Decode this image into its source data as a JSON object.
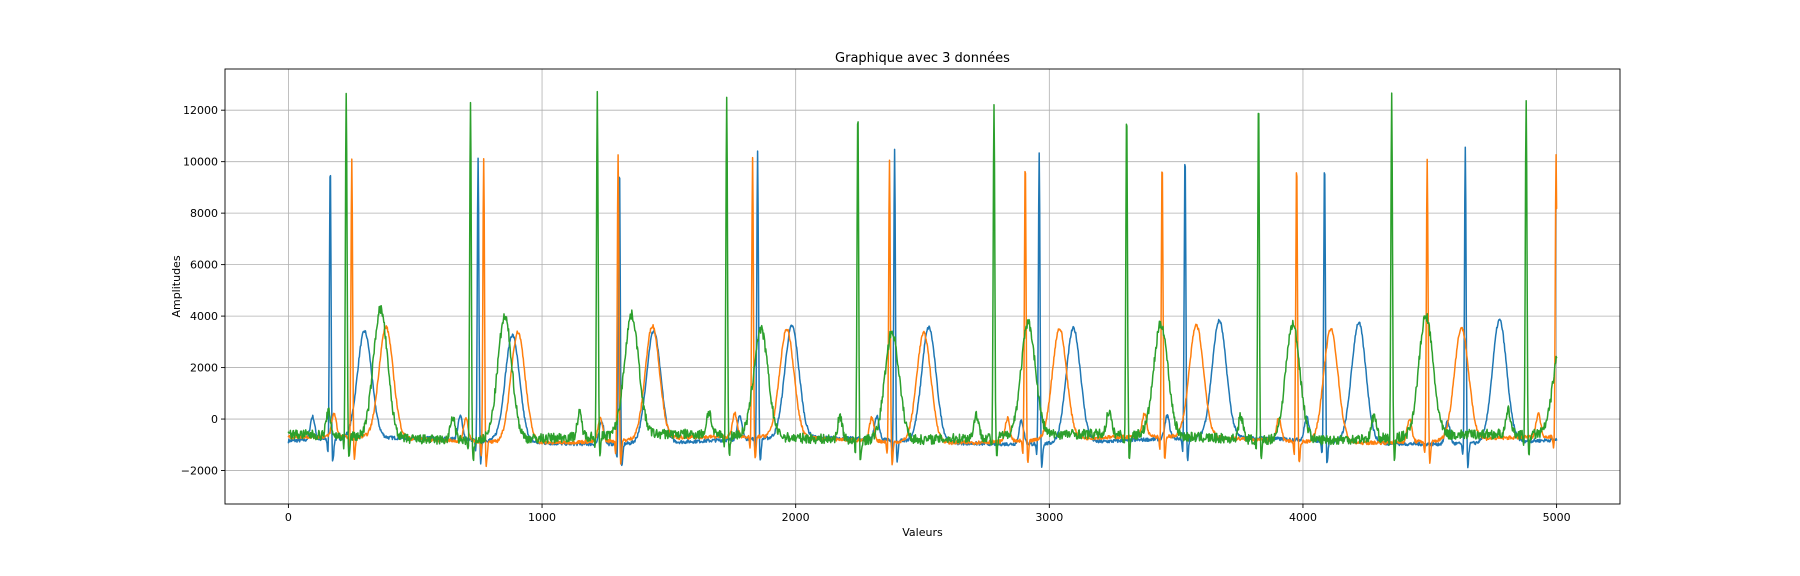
{
  "chart_data": {
    "type": "line",
    "title": "Graphique avec 3 données",
    "xlabel": "Valeurs",
    "ylabel": "Amplitudes",
    "xlim": [
      -250,
      5250
    ],
    "ylim": [
      -3300,
      13600
    ],
    "xticks": [
      0,
      1000,
      2000,
      3000,
      4000,
      5000
    ],
    "xtick_labels": [
      "0",
      "1000",
      "2000",
      "3000",
      "4000",
      "5000"
    ],
    "yticks": [
      -2000,
      0,
      2000,
      4000,
      6000,
      8000,
      10000,
      12000
    ],
    "ytick_labels": [
      "−2000",
      "0",
      "2000",
      "4000",
      "6000",
      "8000",
      "10000",
      "12000"
    ],
    "grid": true,
    "series": [
      {
        "color": "#1f77b4",
        "baseline": -850,
        "beats": [
          {
            "r": 165,
            "peak": 10000,
            "t": 3300
          },
          {
            "r": 748,
            "peak": 10250,
            "t": 3300
          },
          {
            "r": 1305,
            "peak": 10150,
            "t": 3500
          },
          {
            "r": 1850,
            "peak": 10400,
            "t": 3500
          },
          {
            "r": 2390,
            "peak": 10500,
            "t": 3600
          },
          {
            "r": 2960,
            "peak": 10500,
            "t": 3600
          },
          {
            "r": 3535,
            "peak": 10350,
            "t": 3700
          },
          {
            "r": 4085,
            "peak": 10200,
            "t": 3800
          },
          {
            "r": 4640,
            "peak": 10700,
            "t": 3900
          }
        ]
      },
      {
        "color": "#ff7f0e",
        "baseline": -800,
        "beats": [
          {
            "r": 250,
            "peak": 10100,
            "t": 3500
          },
          {
            "r": 770,
            "peak": 10350,
            "t": 3500
          },
          {
            "r": 1300,
            "peak": 10400,
            "t": 3600
          },
          {
            "r": 1830,
            "peak": 10100,
            "t": 3400
          },
          {
            "r": 2370,
            "peak": 10250,
            "t": 3450
          },
          {
            "r": 2905,
            "peak": 10250,
            "t": 3500
          },
          {
            "r": 3445,
            "peak": 10150,
            "t": 3550
          },
          {
            "r": 3975,
            "peak": 10200,
            "t": 3600
          },
          {
            "r": 4490,
            "peak": 10250,
            "t": 3550
          },
          {
            "r": 4998,
            "peak": 10300,
            "t": 3500
          }
        ]
      },
      {
        "color": "#2ca02c",
        "baseline": -700,
        "beats": [
          {
            "r": 228,
            "peak": 12850,
            "t": 4300
          },
          {
            "r": 718,
            "peak": 12450,
            "t": 4050
          },
          {
            "r": 1218,
            "peak": 12800,
            "t": 3950
          },
          {
            "r": 1728,
            "peak": 12500,
            "t": 3450
          },
          {
            "r": 2245,
            "peak": 12250,
            "t": 3500
          },
          {
            "r": 2782,
            "peak": 12350,
            "t": 3650
          },
          {
            "r": 3305,
            "peak": 12050,
            "t": 3650
          },
          {
            "r": 3825,
            "peak": 12600,
            "t": 3800
          },
          {
            "r": 4350,
            "peak": 12750,
            "t": 3950
          },
          {
            "r": 4880,
            "peak": 12400,
            "t": 2800
          }
        ]
      }
    ]
  }
}
